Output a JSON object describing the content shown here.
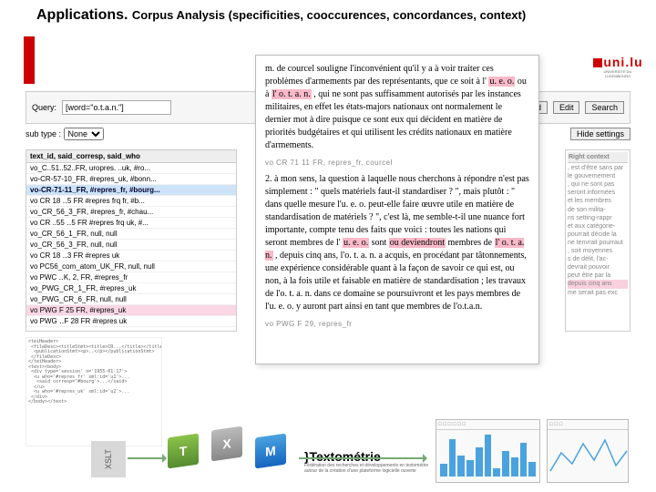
{
  "title": "Applications.",
  "subtitle": "Corpus Analysis (specificities, cooccurences, concordances, context)",
  "logo_text": "uni.lu",
  "logo_sub": "UNIVERSITÉ DU LUXEMBOURG",
  "query": {
    "label": "Query:",
    "value": "[word=\"o.t.a.n.\"]",
    "subtype_label": "sub type :",
    "subtype_value": "None"
  },
  "buttons": {
    "ed": "Ed",
    "edit": "Edit",
    "search": "Search",
    "hide": "Hide settings"
  },
  "list_header": "text_id, said_corresp, said_who",
  "list_items": [
    "vo_C..51..52..FR, uropres. ..uk, #ro...",
    "vo-CR-57-10_FR, #repres_uk, #bonn...",
    "vo-CR-71-11_FR, #repres_fr, #bourg...",
    "vo CR 18 ‥5  FR #repres frq fr, #b...",
    "vo_CR_56_3_FR, #repres_fr, #chau...",
    "vo CR ..55 ‥5  FR  #repres frq uk, #...",
    "vo_CR_56_1_FR, null, null",
    "vo_CR_56_3_FR, null, null",
    "vo CR 18 ‥3  FR #repres uk",
    "vo PC56_com_atom_UK_FR, null, null",
    "vo PWC ‥K, 2,  FR, #repres_fr",
    "vo_PWG_CR_1_FR, #repres_uk",
    "vo_PWG_CR_6_FR, null, null",
    "vo PWG  F  25  FR, #repres_uk",
    "vo PWG ‥F  28  FR  #repres  uk"
  ],
  "list_selected_index": 2,
  "list_highlighted_index": 13,
  "doc": {
    "para1_parts": [
      "m. de courcel souligne l'inconvénient qu'il y a à voir traiter ces problèmes d'armements par des représentants, que ce soit à l' ",
      "u. e. o.",
      " ou à ",
      "l' o. t. a. n.",
      " , qui ne sont pas suffisamment autorisés par les instances militaires, en effet les états-majors nationaux ont normalement le dernier mot à dire puisque ce sont eux qui décident en matière de priorités budgétaires et qui utilisent les crédits nationaux en matière d'armements."
    ],
    "sep1": "vo CR 71 11 FR, repres_fr, courcel",
    "para2_parts": [
      "2. à mon sens, la question à laquelle nous cherchons à répondre n'est pas simplement : \" quels matériels faut-il standardiser ? \", mais plutôt : \" dans quelle mesure l'u. e. o. peut-elle faire œuvre utile en matière de standardisation de matériels ? \", c'est là, me semble-t-il une nuance fort importante, compte tenu des faits que voici : toutes les nations qui seront membres de l' ",
      "u. e. o.",
      " sont ",
      "ou deviendront",
      " membres de ",
      "l' o. t. a. n.",
      " , depuis cinq ans, l'o. t. a. n. a acquis, en procédant par tâtonnements, une expérience considérable quant à la façon de savoir ce qui est, ou non, à la fois utile et faisable en matière de standardisation ; les travaux de l'o. t. a. n. dans ce domaine se poursuivront et les pays membres de l'u. e. o. y auront part ainsi en tant que membres de l'o.t.a.n."
    ],
    "sep2": "vo PWG F 29, repres_fr"
  },
  "right": {
    "header": "Right context",
    "lines": [
      ", est d'être sans par",
      "le gouvernement",
      ", qui ne sont pas",
      "seront informées",
      "et les membres",
      "de son milita-",
      "ns setting-rappr",
      "et aux catégorie-",
      "pourrait décide la",
      "ne tenvrait pourraut",
      ", soit moyennes",
      "s de délit, l'ac-",
      "devrait pouvoir",
      "peut être par la",
      "depuis cinq ans",
      "me serait pas exc"
    ],
    "pink_index": 14
  },
  "xml_snippet": "<teiHeader>\n <fileDesc><titleStmt><title>CR...</title></titleStmt>\n  <publicationStmt><p>..</p></publicationStmt>\n </fileDesc>\n</teiHeader>\n<text><body>\n <div type='session' n='1955-01-17'>\n  <u who='#repres_fr' xml:id='u1'>...\n   <said corresp='#bourg'>...</said>\n  </u>\n  <u who='#repres_uk' xml:id='u2'>...\n </div>\n</body></text>",
  "xslt_label": "XSLT",
  "txm_label": "}Textométrie",
  "txm_sub": "Fédération des recherches et développements en textométrie autour de la création d'une plateforme logicielle ouverte",
  "cubes": {
    "c1": "T",
    "c2": "X",
    "c3": "M"
  },
  "mini_bars": [
    0.3,
    0.9,
    0.5,
    0.4,
    0.7,
    1.0,
    0.2,
    0.6,
    0.45,
    0.8,
    0.35
  ],
  "colors": {
    "accent": "#c00",
    "highlight": "#f9b9c9",
    "selection": "#cde3f8"
  }
}
